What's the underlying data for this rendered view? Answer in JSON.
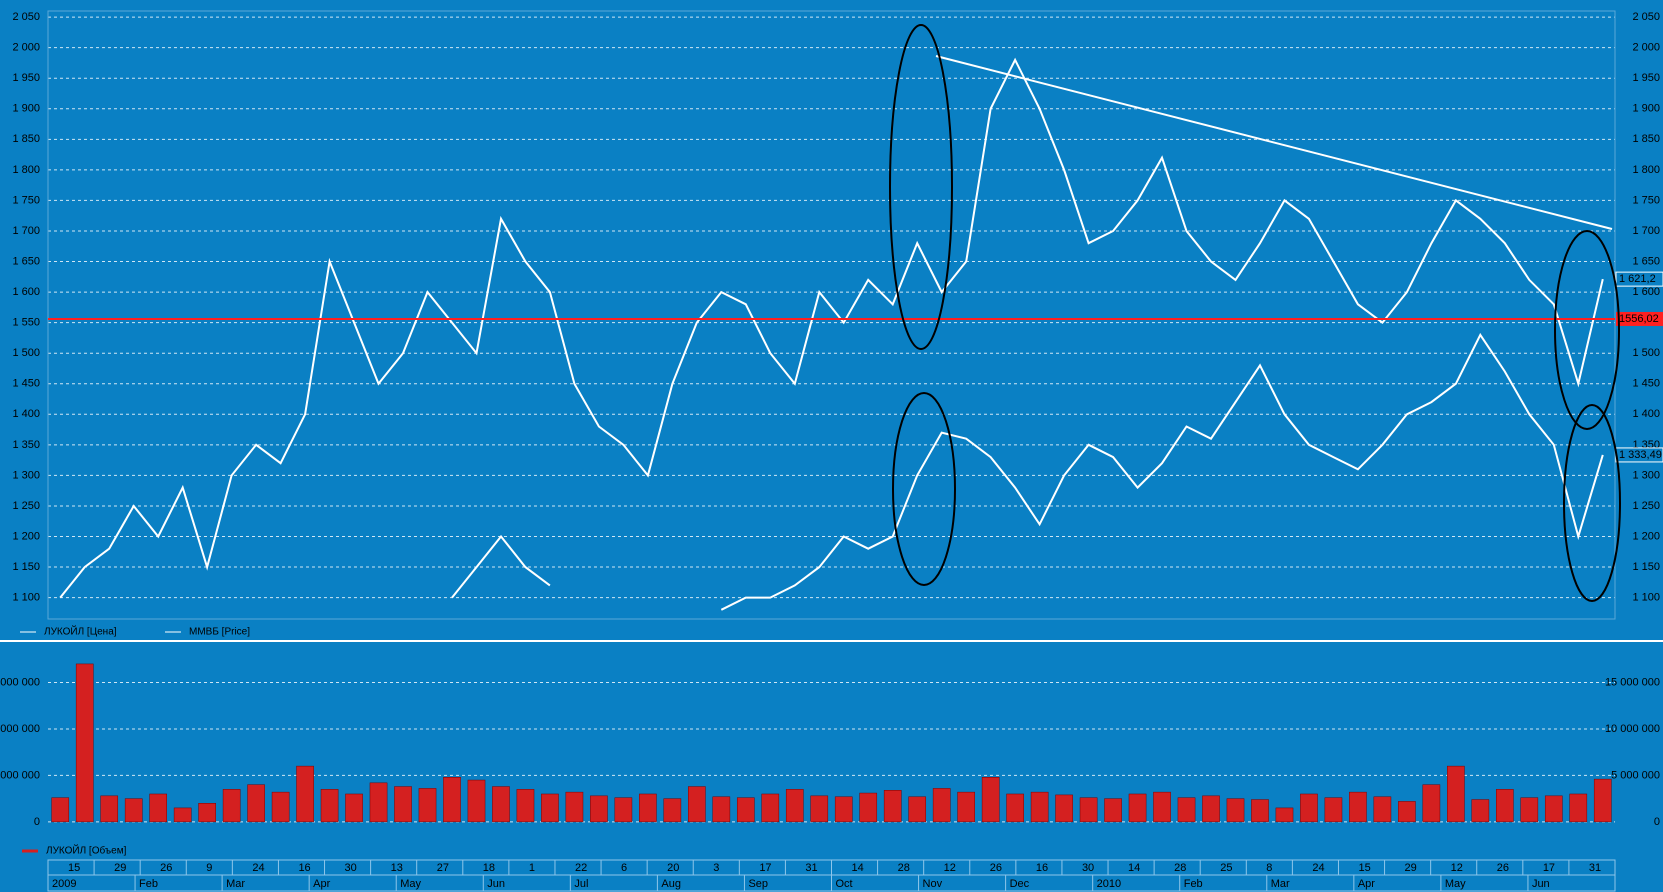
{
  "chart_data": [
    {
      "type": "line",
      "legend": [
        "ЛУКОЙЛ [Цена]",
        "ММВБ [Price]"
      ],
      "series": [
        {
          "name": "ЛУКОЙЛ [Цена]",
          "color": "#ffffff",
          "last_label": "1 621,2",
          "values": [
            1100,
            1150,
            1180,
            1250,
            1200,
            1280,
            1150,
            1300,
            1350,
            1320,
            1400,
            1650,
            1550,
            1450,
            1500,
            1600,
            1550,
            1500,
            1720,
            1650,
            1600,
            1450,
            1380,
            1350,
            1300,
            1450,
            1550,
            1600,
            1580,
            1500,
            1450,
            1600,
            1550,
            1620,
            1580,
            1680,
            1600,
            1650,
            1900,
            1980,
            1900,
            1800,
            1680,
            1700,
            1750,
            1820,
            1700,
            1650,
            1620,
            1680,
            1750,
            1720,
            1650,
            1580,
            1550,
            1600,
            1680,
            1750,
            1720,
            1680,
            1620,
            1580,
            1450,
            1621.2
          ]
        },
        {
          "name": "ММВБ [Price]",
          "color": "#ffffff",
          "last_label": "1 333,49",
          "values": [
            null,
            null,
            null,
            null,
            null,
            null,
            null,
            null,
            null,
            null,
            null,
            null,
            null,
            null,
            null,
            null,
            1100,
            1150,
            1200,
            1150,
            1120,
            null,
            null,
            null,
            null,
            null,
            null,
            1080,
            1100,
            1100,
            1120,
            1150,
            1200,
            1180,
            1200,
            1300,
            1370,
            1360,
            1330,
            1280,
            1220,
            1300,
            1350,
            1330,
            1280,
            1320,
            1380,
            1360,
            1420,
            1480,
            1400,
            1350,
            1330,
            1310,
            1350,
            1400,
            1420,
            1450,
            1530,
            1470,
            1400,
            1350,
            1200,
            1333.49
          ]
        }
      ],
      "reference_line": {
        "value": 1556.02,
        "label": "1556,02",
        "color": "#ff2020"
      },
      "ylim": [
        1065,
        2060
      ],
      "yticks": [
        {
          "value": 1100,
          "label": "1 100"
        },
        {
          "value": 1150,
          "label": "1 150"
        },
        {
          "value": 1200,
          "label": "1 200"
        },
        {
          "value": 1250,
          "label": "1 250"
        },
        {
          "value": 1300,
          "label": "1 300"
        },
        {
          "value": 1350,
          "label": "1 350"
        },
        {
          "value": 1400,
          "label": "1 400"
        },
        {
          "value": 1450,
          "label": "1 450"
        },
        {
          "value": 1500,
          "label": "1 500"
        },
        {
          "value": 1550,
          "label": "1 550"
        },
        {
          "value": 1600,
          "label": "1 600"
        },
        {
          "value": 1650,
          "label": "1 650"
        },
        {
          "value": 1700,
          "label": "1 700"
        },
        {
          "value": 1750,
          "label": "1 750"
        },
        {
          "value": 1800,
          "label": "1 800"
        },
        {
          "value": 1850,
          "label": "1 850"
        },
        {
          "value": 1900,
          "label": "1 900"
        },
        {
          "value": 1950,
          "label": "1 950"
        },
        {
          "value": 2000,
          "label": "2 000"
        },
        {
          "value": 2050,
          "label": "2 050"
        }
      ],
      "grid": true
    },
    {
      "type": "bar",
      "legend": [
        "ЛУКОЙЛ [Объем]"
      ],
      "color": "#d42020",
      "values": [
        2600000,
        17000000,
        2800000,
        2500000,
        3000000,
        1500000,
        2000000,
        3500000,
        4000000,
        3200000,
        6000000,
        3500000,
        3000000,
        4200000,
        3800000,
        3600000,
        4800000,
        4500000,
        3800000,
        3500000,
        3000000,
        3200000,
        2800000,
        2600000,
        3000000,
        2500000,
        3800000,
        2700000,
        2600000,
        3000000,
        3500000,
        2800000,
        2700000,
        3100000,
        3400000,
        2700000,
        3600000,
        3200000,
        4800000,
        3000000,
        3200000,
        2900000,
        2600000,
        2500000,
        3000000,
        3200000,
        2600000,
        2800000,
        2500000,
        2400000,
        1500000,
        3000000,
        2600000,
        3200000,
        2700000,
        2200000,
        4000000,
        6000000,
        2400000,
        3500000,
        2600000,
        2800000,
        3000000,
        4600000
      ],
      "ylim": [
        -1200000,
        18500000
      ],
      "yticks": [
        {
          "value": 0,
          "label": "0"
        },
        {
          "value": 5000000,
          "label": "5 000 000"
        },
        {
          "value": 10000000,
          "label": "10 000 000"
        },
        {
          "value": 15000000,
          "label": "15 000 000"
        }
      ],
      "grid": true
    },
    {
      "type": "dates",
      "days": [
        "15",
        "29",
        "26",
        "9",
        "24",
        "16",
        "30",
        "13",
        "27",
        "18",
        "1",
        "22",
        "6",
        "20",
        "3",
        "17",
        "31",
        "14",
        "28",
        "12",
        "26",
        "16",
        "30",
        "14",
        "28",
        "25",
        "8",
        "24",
        "15",
        "29",
        "12",
        "26",
        "17",
        "31"
      ],
      "months": [
        "2009",
        "Feb",
        "Mar",
        "Apr",
        "May",
        "Jun",
        "Jul",
        "Aug",
        "Sep",
        "Oct",
        "Nov",
        "Dec",
        "2010",
        "Feb",
        "Mar",
        "Apr",
        "May",
        "Jun"
      ]
    }
  ]
}
